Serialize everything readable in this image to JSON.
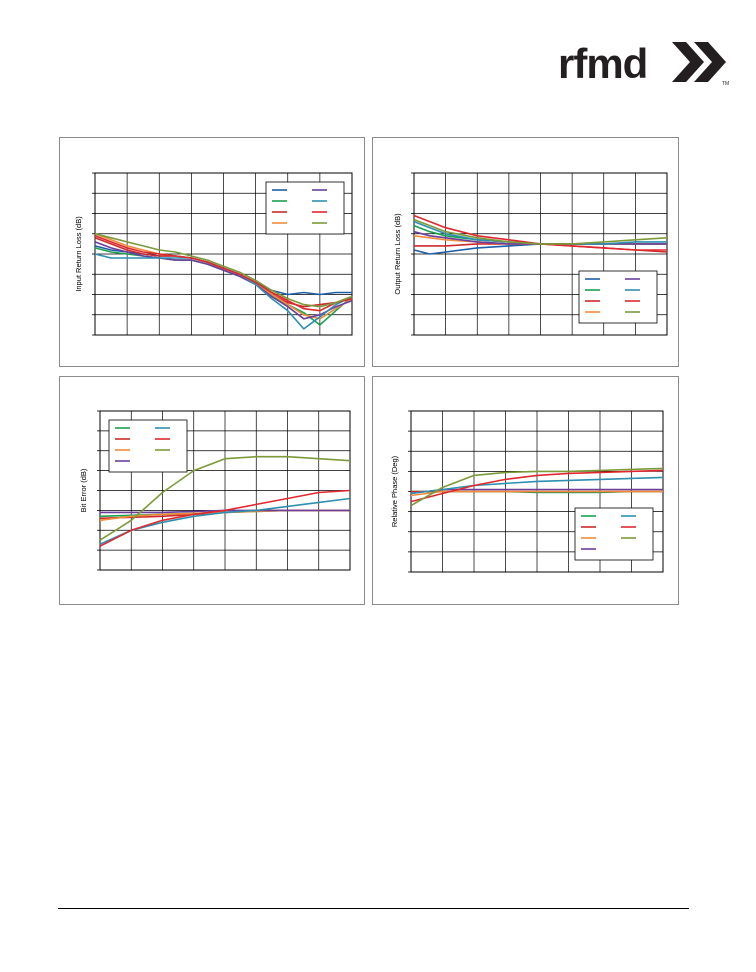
{
  "brand": {
    "name": "rfmd",
    "tm": "TM",
    "colors": {
      "text": "#231f20"
    }
  },
  "chart_data": [
    {
      "type": "line",
      "ylabel": "Input Return Loss (dB)",
      "xlabel": "",
      "ylim": [
        0,
        8
      ],
      "xlim": [
        0,
        8
      ],
      "grid": true,
      "legend_placement": "top-right",
      "series": [
        {
          "color": "#1f5fa8",
          "x": [
            0,
            0.5,
            1,
            1.5,
            2,
            2.5,
            3,
            3.5,
            4,
            4.5,
            5,
            5.5,
            6,
            6.5,
            7,
            7.5,
            8
          ],
          "values": [
            4.4,
            4.2,
            4.1,
            4.0,
            3.9,
            3.9,
            3.8,
            3.6,
            3.3,
            3.0,
            2.6,
            2.2,
            2.0,
            2.1,
            2.0,
            2.1,
            2.1
          ]
        },
        {
          "color": "#1aa250",
          "x": [
            0,
            0.5,
            1,
            1.5,
            2,
            2.5,
            3,
            3.5,
            4,
            4.5,
            5,
            5.5,
            6,
            6.5,
            7,
            7.5,
            8
          ],
          "values": [
            4.3,
            4.1,
            4.0,
            3.9,
            3.8,
            3.7,
            3.7,
            3.5,
            3.2,
            2.9,
            2.5,
            1.9,
            1.5,
            1.1,
            0.5,
            1.2,
            1.9
          ]
        },
        {
          "color": "#cc2b2b",
          "x": [
            0,
            0.5,
            1,
            1.5,
            2,
            2.5,
            3,
            3.5,
            4,
            4.5,
            5,
            5.5,
            6,
            6.5,
            7,
            7.5,
            8
          ],
          "values": [
            4.8,
            4.5,
            4.2,
            4.0,
            3.9,
            3.9,
            3.8,
            3.6,
            3.3,
            3.0,
            2.6,
            2.0,
            1.6,
            1.4,
            1.5,
            1.6,
            1.9
          ]
        },
        {
          "color": "#f08c3c",
          "x": [
            0,
            0.5,
            1,
            1.5,
            2,
            2.5,
            3,
            3.5,
            4,
            4.5,
            5,
            5.5,
            6,
            6.5,
            7,
            7.5,
            8
          ],
          "values": [
            5.0,
            4.7,
            4.4,
            4.2,
            4.0,
            3.9,
            3.8,
            3.6,
            3.3,
            3.0,
            2.6,
            2.0,
            1.5,
            1.0,
            0.8,
            1.3,
            1.8
          ]
        },
        {
          "color": "#6d3f9c",
          "x": [
            0,
            0.5,
            1,
            1.5,
            2,
            2.5,
            3,
            3.5,
            4,
            4.5,
            5,
            5.5,
            6,
            6.5,
            7,
            7.5,
            8
          ],
          "values": [
            4.6,
            4.3,
            4.1,
            3.9,
            3.8,
            3.7,
            3.7,
            3.5,
            3.2,
            2.9,
            2.5,
            1.9,
            1.4,
            0.8,
            1.0,
            1.4,
            1.7
          ]
        },
        {
          "color": "#2e8fb0",
          "x": [
            0,
            0.5,
            1,
            1.5,
            2,
            2.5,
            3,
            3.5,
            4,
            4.5,
            5,
            5.5,
            6,
            6.5,
            7,
            7.5,
            8
          ],
          "values": [
            4.0,
            3.8,
            3.8,
            3.8,
            3.8,
            3.8,
            3.8,
            3.6,
            3.3,
            3.0,
            2.5,
            1.8,
            1.2,
            0.3,
            0.9,
            1.5,
            1.9
          ]
        },
        {
          "color": "#e0282e",
          "x": [
            0,
            0.5,
            1,
            1.5,
            2,
            2.5,
            3,
            3.5,
            4,
            4.5,
            5,
            5.5,
            6,
            6.5,
            7,
            7.5,
            8
          ],
          "values": [
            4.9,
            4.6,
            4.3,
            4.1,
            4.0,
            3.9,
            3.8,
            3.6,
            3.3,
            3.0,
            2.6,
            2.1,
            1.7,
            1.3,
            1.2,
            1.6,
            1.8
          ]
        },
        {
          "color": "#7d9a3a",
          "x": [
            0,
            0.5,
            1,
            1.5,
            2,
            2.5,
            3,
            3.5,
            4,
            4.5,
            5,
            5.5,
            6,
            6.5,
            7,
            7.5,
            8
          ],
          "values": [
            5.0,
            4.8,
            4.6,
            4.4,
            4.2,
            4.1,
            3.9,
            3.7,
            3.4,
            3.1,
            2.7,
            2.2,
            1.8,
            1.5,
            1.4,
            1.6,
            1.9
          ]
        }
      ]
    },
    {
      "type": "line",
      "ylabel": "Output Return Loss (dB)",
      "xlabel": "",
      "ylim": [
        0,
        8
      ],
      "xlim": [
        0,
        8
      ],
      "grid": true,
      "legend_placement": "bottom-right",
      "series": [
        {
          "color": "#1f5fa8",
          "x": [
            0,
            0.5,
            1,
            2,
            3,
            4,
            5,
            6,
            7,
            8
          ],
          "values": [
            4.2,
            4.0,
            4.1,
            4.3,
            4.4,
            4.5,
            4.5,
            4.5,
            4.5,
            4.5
          ]
        },
        {
          "color": "#1aa250",
          "x": [
            0,
            0.5,
            1,
            2,
            3,
            4,
            5,
            6,
            7,
            8
          ],
          "values": [
            5.4,
            5.1,
            4.9,
            4.7,
            4.6,
            4.5,
            4.5,
            4.5,
            4.5,
            4.5
          ]
        },
        {
          "color": "#cc2b2b",
          "x": [
            0,
            0.5,
            1,
            2,
            3,
            4,
            5,
            6,
            7,
            8
          ],
          "values": [
            4.4,
            4.4,
            4.4,
            4.5,
            4.5,
            4.5,
            4.4,
            4.3,
            4.2,
            4.1
          ]
        },
        {
          "color": "#f08c3c",
          "x": [
            0,
            0.5,
            1,
            2,
            3,
            4,
            5,
            6,
            7,
            8
          ],
          "values": [
            4.9,
            4.8,
            4.7,
            4.6,
            4.5,
            4.5,
            4.5,
            4.5,
            4.5,
            4.5
          ]
        },
        {
          "color": "#6d3f9c",
          "x": [
            0,
            0.5,
            1,
            2,
            3,
            4,
            5,
            6,
            7,
            8
          ],
          "values": [
            5.1,
            4.9,
            4.8,
            4.6,
            4.5,
            4.5,
            4.5,
            4.5,
            4.5,
            4.5
          ]
        },
        {
          "color": "#2e8fb0",
          "x": [
            0,
            0.5,
            1,
            2,
            3,
            4,
            5,
            6,
            7,
            8
          ],
          "values": [
            5.6,
            5.3,
            5.0,
            4.7,
            4.6,
            4.5,
            4.5,
            4.5,
            4.6,
            4.6
          ]
        },
        {
          "color": "#e0282e",
          "x": [
            0,
            0.5,
            1,
            2,
            3,
            4,
            5,
            6,
            7,
            8
          ],
          "values": [
            5.9,
            5.6,
            5.3,
            4.9,
            4.7,
            4.5,
            4.4,
            4.3,
            4.2,
            4.2
          ]
        },
        {
          "color": "#7d9a3a",
          "x": [
            0,
            0.5,
            1,
            2,
            3,
            4,
            5,
            6,
            7,
            8
          ],
          "values": [
            5.7,
            5.4,
            5.1,
            4.8,
            4.6,
            4.5,
            4.5,
            4.6,
            4.7,
            4.8
          ]
        }
      ]
    },
    {
      "type": "line",
      "ylabel": "Bit Error (dB)",
      "xlabel": "",
      "ylim": [
        0,
        8
      ],
      "xlim": [
        0,
        8
      ],
      "grid": true,
      "legend_placement": "top-left",
      "series": [
        {
          "color": "#1aa250",
          "x": [
            0,
            1,
            2,
            3,
            4,
            5,
            6,
            7,
            8
          ],
          "values": [
            2.7,
            2.75,
            2.8,
            2.85,
            2.9,
            2.95,
            3.0,
            3.0,
            3.0
          ]
        },
        {
          "color": "#cc2b2b",
          "x": [
            0,
            1,
            2,
            3,
            4,
            5,
            6,
            7,
            8
          ],
          "values": [
            2.6,
            2.65,
            2.7,
            2.8,
            2.9,
            3.0,
            3.0,
            3.0,
            3.0
          ]
        },
        {
          "color": "#f08c3c",
          "x": [
            0,
            1,
            2,
            3,
            4,
            5,
            6,
            7,
            8
          ],
          "values": [
            2.5,
            2.7,
            2.8,
            2.85,
            2.9,
            2.95,
            3.0,
            3.0,
            3.0
          ]
        },
        {
          "color": "#6d3f9c",
          "x": [
            0,
            1,
            2,
            3,
            4,
            5,
            6,
            7,
            8
          ],
          "values": [
            2.9,
            2.9,
            2.9,
            2.95,
            3.0,
            3.0,
            3.0,
            3.0,
            3.0
          ]
        },
        {
          "color": "#2e8fb0",
          "x": [
            0,
            1,
            2,
            3,
            4,
            5,
            6,
            7,
            8
          ],
          "values": [
            1.3,
            2.0,
            2.4,
            2.7,
            2.9,
            3.0,
            3.2,
            3.4,
            3.6
          ]
        },
        {
          "color": "#e0282e",
          "x": [
            0,
            1,
            2,
            3,
            4,
            5,
            6,
            7,
            8
          ],
          "values": [
            1.2,
            2.0,
            2.5,
            2.8,
            3.0,
            3.3,
            3.6,
            3.9,
            4.0
          ]
        },
        {
          "color": "#7d9a3a",
          "x": [
            0,
            1,
            2,
            3,
            4,
            5,
            6,
            7,
            8
          ],
          "values": [
            1.5,
            2.5,
            3.9,
            5.0,
            5.6,
            5.7,
            5.7,
            5.6,
            5.5
          ]
        }
      ]
    },
    {
      "type": "line",
      "ylabel": "Relative Phase (Deg)",
      "xlabel": "",
      "ylim": [
        0,
        8
      ],
      "xlim": [
        0,
        8
      ],
      "grid": true,
      "legend_placement": "bottom-right",
      "series": [
        {
          "color": "#1aa250",
          "x": [
            0,
            1,
            2,
            3,
            4,
            5,
            6,
            7,
            8
          ],
          "values": [
            4.0,
            4.0,
            4.0,
            4.0,
            3.95,
            3.95,
            3.95,
            4.0,
            4.0
          ]
        },
        {
          "color": "#cc2b2b",
          "x": [
            0,
            1,
            2,
            3,
            4,
            5,
            6,
            7,
            8
          ],
          "values": [
            4.0,
            4.0,
            4.0,
            4.0,
            4.0,
            4.0,
            4.0,
            4.0,
            4.0
          ]
        },
        {
          "color": "#f08c3c",
          "x": [
            0,
            1,
            2,
            3,
            4,
            5,
            6,
            7,
            8
          ],
          "values": [
            3.8,
            4.0,
            4.0,
            4.0,
            4.0,
            4.0,
            4.0,
            4.0,
            4.0
          ]
        },
        {
          "color": "#6d3f9c",
          "x": [
            0,
            1,
            2,
            3,
            4,
            5,
            6,
            7,
            8
          ],
          "values": [
            3.9,
            4.1,
            4.1,
            4.1,
            4.1,
            4.1,
            4.1,
            4.1,
            4.1
          ]
        },
        {
          "color": "#2e8fb0",
          "x": [
            0,
            1,
            2,
            3,
            4,
            5,
            6,
            7,
            8
          ],
          "values": [
            3.9,
            4.1,
            4.3,
            4.4,
            4.5,
            4.55,
            4.6,
            4.65,
            4.7
          ]
        },
        {
          "color": "#e0282e",
          "x": [
            0,
            1,
            2,
            3,
            4,
            5,
            6,
            7,
            8
          ],
          "values": [
            3.5,
            3.9,
            4.3,
            4.6,
            4.8,
            4.9,
            4.95,
            5.0,
            5.05
          ]
        },
        {
          "color": "#7d9a3a",
          "x": [
            0,
            1,
            2,
            3,
            4,
            5,
            6,
            7,
            8
          ],
          "values": [
            3.3,
            4.2,
            4.8,
            4.95,
            5.0,
            5.0,
            5.05,
            5.1,
            5.15
          ]
        }
      ]
    }
  ]
}
